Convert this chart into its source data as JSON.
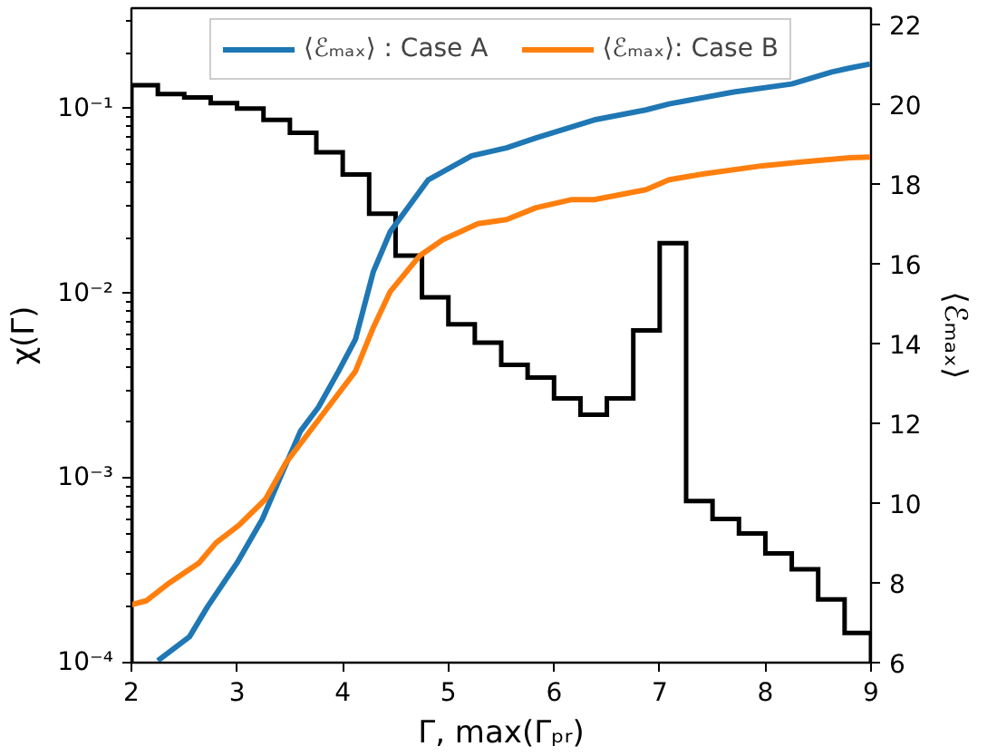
{
  "chart_data": {
    "type": "histogram",
    "xlabel": "Γ, max(Γₚᵣ)",
    "ylabel": "χ(Γ)",
    "y2label": "⟨ℰₘₐₓ⟩",
    "color": "#000000",
    "bins": [
      2,
      2.25,
      2.5,
      2.75,
      3,
      3.25,
      3.5,
      3.75,
      4,
      4.25,
      4.5,
      4.75,
      5,
      5.25,
      5.5,
      5.75,
      6,
      6.25,
      6.5,
      6.75,
      7,
      7.25,
      7.5,
      7.75,
      8,
      8.25,
      8.5,
      8.75,
      9
    ],
    "values": [
      0.134,
      0.12,
      0.115,
      0.107,
      0.1,
      0.087,
      0.074,
      0.058,
      0.044,
      0.027,
      0.016,
      0.0095,
      0.0068,
      0.0054,
      0.0041,
      0.0035,
      0.0027,
      0.0022,
      0.0027,
      0.0063,
      0.0187,
      0.00075,
      0.0006,
      0.0005,
      0.00039,
      0.00032,
      0.00022,
      0.000145
    ],
    "series": [
      {
        "name": "⟨ℰₘₐₓ⟩ : Case A",
        "type": "line",
        "axis": "y2",
        "color": "#1f77b4",
        "x": [
          2.25,
          2.55,
          2.72,
          3.0,
          3.24,
          3.41,
          3.6,
          3.77,
          3.96,
          4.12,
          4.29,
          4.45,
          4.81,
          5.22,
          5.55,
          5.83,
          6.38,
          6.87,
          7.09,
          7.7,
          8.25,
          8.63,
          8.8,
          8.99
        ],
        "values": [
          6.05,
          6.65,
          7.4,
          8.5,
          9.6,
          10.65,
          11.8,
          12.4,
          13.3,
          14.1,
          15.8,
          16.8,
          18.1,
          18.7,
          18.9,
          19.15,
          19.6,
          19.85,
          20.0,
          20.3,
          20.5,
          20.8,
          20.9,
          21.0
        ]
      },
      {
        "name": "⟨ℰₘₐₓ⟩: Case B",
        "type": "line",
        "axis": "y2",
        "color": "#ff7f0e",
        "x": [
          2.0,
          2.14,
          2.36,
          2.64,
          2.8,
          3.02,
          3.27,
          3.46,
          3.79,
          4.12,
          4.29,
          4.45,
          4.73,
          4.95,
          5.28,
          5.55,
          5.83,
          6.16,
          6.38,
          6.87,
          7.09,
          7.42,
          7.97,
          8.36,
          8.8,
          8.99
        ],
        "values": [
          7.45,
          7.55,
          8.0,
          8.5,
          9.0,
          9.45,
          10.1,
          11.0,
          12.15,
          13.3,
          14.4,
          15.3,
          16.2,
          16.6,
          17.0,
          17.1,
          17.4,
          17.6,
          17.6,
          17.85,
          18.1,
          18.25,
          18.45,
          18.55,
          18.65,
          18.67
        ]
      }
    ],
    "xlim": [
      2,
      9
    ],
    "xticks": [
      2,
      3,
      4,
      5,
      6,
      7,
      8,
      9
    ],
    "log": "y",
    "ylim": [
      0.0001,
      0.35
    ],
    "yticks": [
      {
        "value": 0.0001,
        "label": "10⁻⁴"
      },
      {
        "value": 0.001,
        "label": "10⁻³"
      },
      {
        "value": 0.01,
        "label": "10⁻²"
      },
      {
        "value": 0.1,
        "label": "10⁻¹"
      }
    ],
    "y2lim": [
      6,
      22.4
    ],
    "y2ticks": [
      6,
      8,
      10,
      12,
      14,
      16,
      18,
      20,
      22
    ],
    "grid": false,
    "legend": "top",
    "line_style": "solid",
    "marker": "none"
  }
}
